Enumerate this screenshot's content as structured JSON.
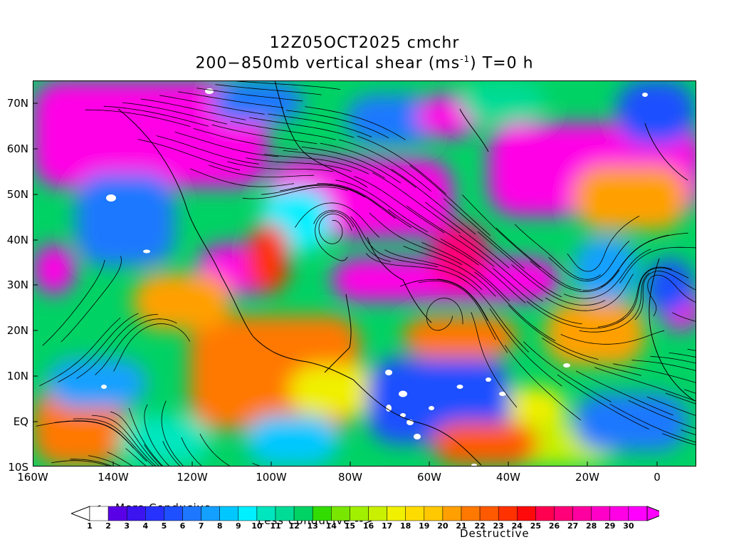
{
  "title": {
    "line1": "12Z05OCT2025 cmchr",
    "line2_pre": "200−850mb vertical shear (ms",
    "line2_sup": "-1",
    "line2_post": ") T=0 h"
  },
  "map": {
    "region": "tropical/north Atlantic and eastern Pacific",
    "variable": "vertical wind shear magnitude with streamlines",
    "lat_labels": [
      "70N",
      "60N",
      "50N",
      "40N",
      "30N",
      "20N",
      "10N",
      "EQ",
      "10S"
    ],
    "lon_labels": [
      "160W",
      "140W",
      "120W",
      "100W",
      "80W",
      "60W",
      "40W",
      "20W",
      "0"
    ]
  },
  "legend": {
    "more_conducive": "<-- More Conducive",
    "less_conducive": "Less Conducive -->",
    "destructive": "Destructive",
    "values": [
      "1",
      "2",
      "3",
      "4",
      "5",
      "6",
      "7",
      "8",
      "9",
      "10",
      "11",
      "12",
      "13",
      "14",
      "15",
      "16",
      "17",
      "18",
      "19",
      "20",
      "21",
      "22",
      "23",
      "24",
      "25",
      "26",
      "27",
      "28",
      "29",
      "30"
    ],
    "colors": [
      "#ffffff",
      "#5a00e6",
      "#3c14f0",
      "#2832ff",
      "#1e50ff",
      "#1e78ff",
      "#14a0ff",
      "#00c8ff",
      "#00f0ff",
      "#00e6be",
      "#00dc96",
      "#00d264",
      "#32dc00",
      "#78e600",
      "#a0f000",
      "#c8f000",
      "#f0f000",
      "#ffdc00",
      "#ffc800",
      "#ffa000",
      "#ff7800",
      "#ff5a00",
      "#ff3200",
      "#ff0a0a",
      "#ff0050",
      "#ff0078",
      "#ff00a0",
      "#ff00c8",
      "#ff00e6",
      "#ff00ff"
    ]
  }
}
